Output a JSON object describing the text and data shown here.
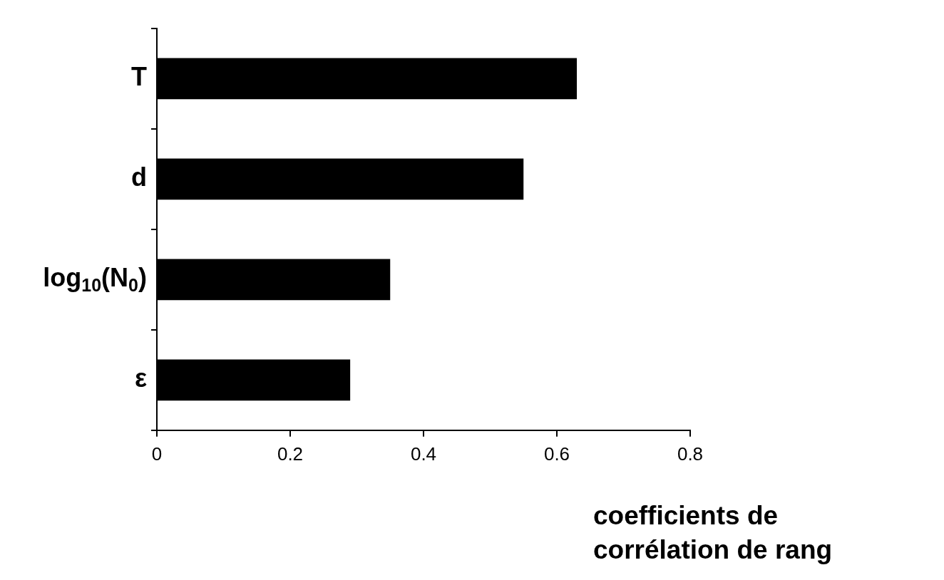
{
  "chart_data": {
    "type": "bar",
    "orientation": "horizontal",
    "categories": [
      "T",
      "d",
      "log$_{10}$(N$_{0}$)",
      "ε"
    ],
    "values": [
      0.63,
      0.55,
      0.35,
      0.29
    ],
    "color": "#000000",
    "xlim": [
      0,
      0.8
    ],
    "xticks": [
      0,
      0.2,
      0.4,
      0.6,
      0.8
    ],
    "xlabel": "coefficients de\ncorrélation de rang"
  }
}
